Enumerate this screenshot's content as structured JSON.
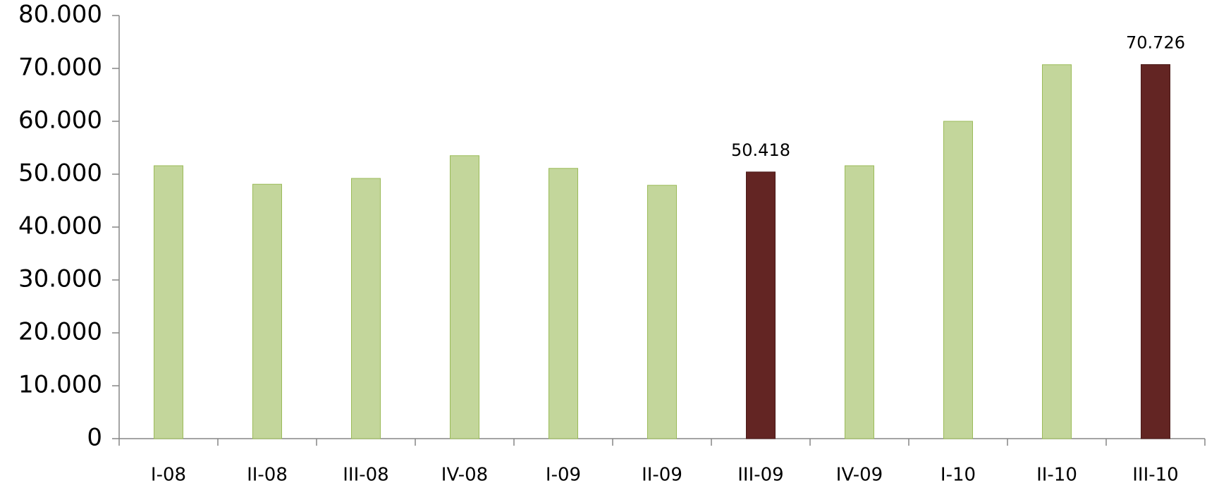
{
  "chart_data": {
    "type": "bar",
    "categories": [
      "I-08",
      "II-08",
      "III-08",
      "IV-08",
      "I-09",
      "II-09",
      "III-09",
      "IV-09",
      "I-10",
      "II-10",
      "III-10"
    ],
    "values": [
      51600,
      48100,
      49200,
      53500,
      51100,
      47900,
      50418,
      51600,
      60000,
      70700,
      70726
    ],
    "value_labels": [
      null,
      null,
      null,
      null,
      null,
      null,
      "50.418",
      null,
      null,
      null,
      "70.726"
    ],
    "colors": [
      "#c3d69b",
      "#c3d69b",
      "#c3d69b",
      "#c3d69b",
      "#c3d69b",
      "#c3d69b",
      "#632523",
      "#c3d69b",
      "#c3d69b",
      "#c3d69b",
      "#632523"
    ],
    "ylim": [
      0,
      80000
    ],
    "yticks": [
      0,
      {
        "value": 10000,
        "label": "10.000"
      },
      {
        "value": 20000,
        "label": "20.000"
      },
      {
        "value": 30000,
        "label": "30.000"
      },
      {
        "value": 40000,
        "label": "40.000"
      },
      {
        "value": 50000,
        "label": "50.000"
      },
      {
        "value": 60000,
        "label": "60.000"
      },
      {
        "value": 70000,
        "label": "70.000"
      },
      {
        "value": 80000,
        "label": "80.000"
      }
    ]
  }
}
